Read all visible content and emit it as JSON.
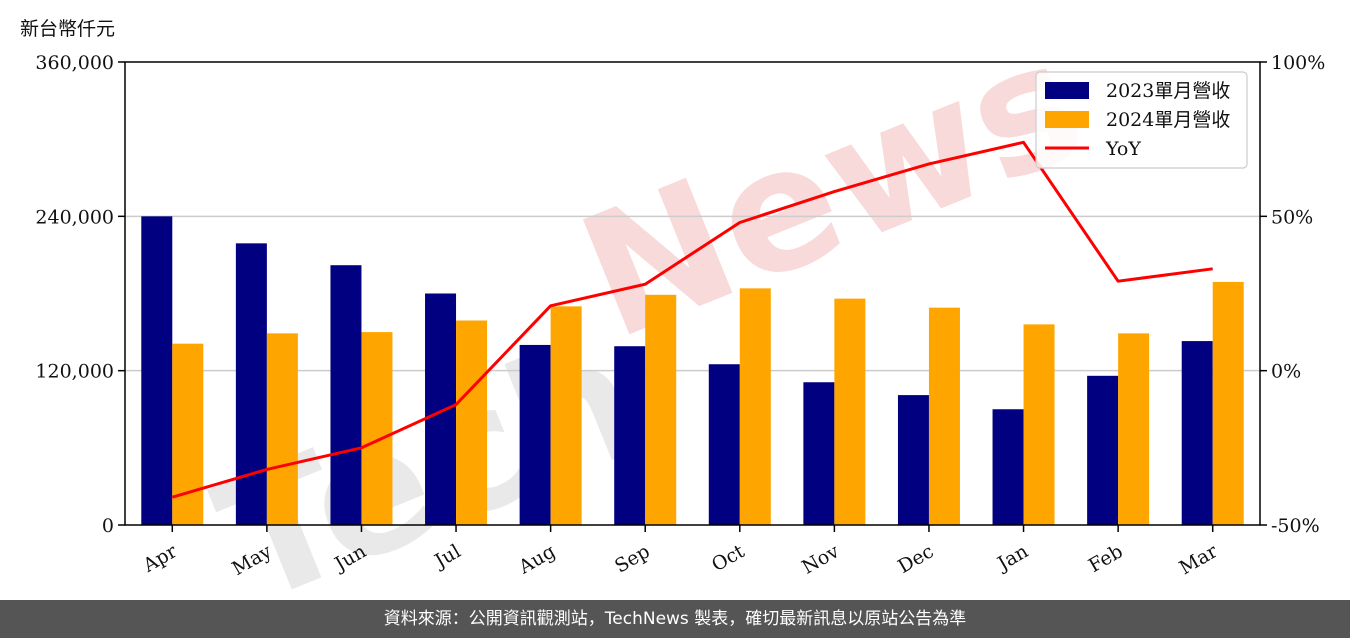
{
  "unit_label": "新台幣仟元",
  "footer": "資料來源：公開資訊觀測站，TechNews 製表，確切最新訊息以原站公告為準",
  "watermark": {
    "part1": "Tech",
    "part2": "News"
  },
  "chart_data": {
    "type": "bar",
    "categories": [
      "Apr",
      "May",
      "Jun",
      "Jul",
      "Aug",
      "Sep",
      "Oct",
      "Nov",
      "Dec",
      "Jan",
      "Feb",
      "Mar"
    ],
    "series": [
      {
        "name": "2023單月營收",
        "type": "bar",
        "axis": "left",
        "color": "#000080",
        "values": [
          240000,
          219000,
          202000,
          180000,
          140000,
          139000,
          125000,
          111000,
          101000,
          90000,
          116000,
          143000
        ]
      },
      {
        "name": "2024單月營收",
        "type": "bar",
        "axis": "left",
        "color": "#ffa500",
        "values": [
          141000,
          149000,
          150000,
          159000,
          170000,
          179000,
          184000,
          176000,
          169000,
          156000,
          149000,
          189000
        ]
      },
      {
        "name": "YoY",
        "type": "line",
        "axis": "right",
        "color": "#ff0000",
        "values": [
          -41,
          -32,
          -25,
          -11,
          21,
          28,
          48,
          58,
          67,
          74,
          29,
          33
        ]
      }
    ],
    "y_left": {
      "min": 0,
      "max": 360000,
      "ticks": [
        0,
        120000,
        240000,
        360000
      ],
      "tick_labels": [
        "0",
        "120,000",
        "240,000",
        "360,000"
      ]
    },
    "y_right": {
      "min": -50,
      "max": 100,
      "ticks": [
        -50,
        0,
        50,
        100
      ],
      "tick_labels": [
        "-50%",
        "0%",
        "50%",
        "100%"
      ]
    },
    "grid": "horizontal",
    "legend": "top-right"
  }
}
